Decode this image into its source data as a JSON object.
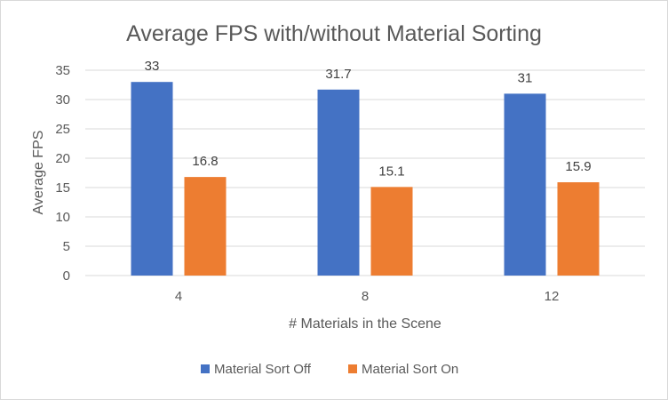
{
  "chart_data": {
    "type": "bar",
    "title": "Average FPS with/without Material Sorting",
    "xlabel": "# Materials in the Scene",
    "ylabel": "Average FPS",
    "categories": [
      "4",
      "8",
      "12"
    ],
    "series": [
      {
        "name": "Material Sort Off",
        "values": [
          33,
          31.7,
          31
        ],
        "color": "#4472C4"
      },
      {
        "name": "Material Sort On",
        "values": [
          16.8,
          15.1,
          15.9
        ],
        "color": "#ED7D31"
      }
    ],
    "ylim": [
      0,
      35
    ],
    "yticks": [
      0,
      5,
      10,
      15,
      20,
      25,
      30,
      35
    ],
    "grid": true,
    "legend": "bottom"
  }
}
